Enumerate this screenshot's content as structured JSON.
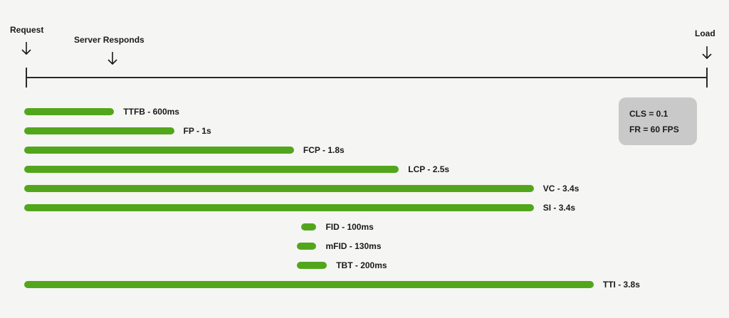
{
  "markers": {
    "request": "Request",
    "server": "Server Responds",
    "load": "Load"
  },
  "metrics": [
    {
      "label": "TTFB - 600ms",
      "start_s": 0,
      "end_s": 0.6
    },
    {
      "label": "FP - 1s",
      "start_s": 0,
      "end_s": 1.0
    },
    {
      "label": "FCP - 1.8s",
      "start_s": 0,
      "end_s": 1.8
    },
    {
      "label": "LCP - 2.5s",
      "start_s": 0,
      "end_s": 2.5
    },
    {
      "label": "VC - 3.4s",
      "start_s": 0,
      "end_s": 3.4
    },
    {
      "label": "SI - 3.4s",
      "start_s": 0,
      "end_s": 3.4
    },
    {
      "label": "FID - 100ms",
      "start_s": 1.85,
      "end_s": 1.95
    },
    {
      "label": "mFID - 130ms",
      "start_s": 1.82,
      "end_s": 1.95
    },
    {
      "label": "TBT - 200ms",
      "start_s": 1.82,
      "end_s": 2.02
    },
    {
      "label": "TTI - 3.8s",
      "start_s": 0,
      "end_s": 3.8
    }
  ],
  "info_box": {
    "cls": "CLS = 0.1",
    "fr": "FR = 60 FPS"
  },
  "colors": {
    "bar": "#52a61c",
    "background": "#f5f5f4",
    "info_box": "#c9c9c9",
    "text": "#1a1a1a"
  }
}
